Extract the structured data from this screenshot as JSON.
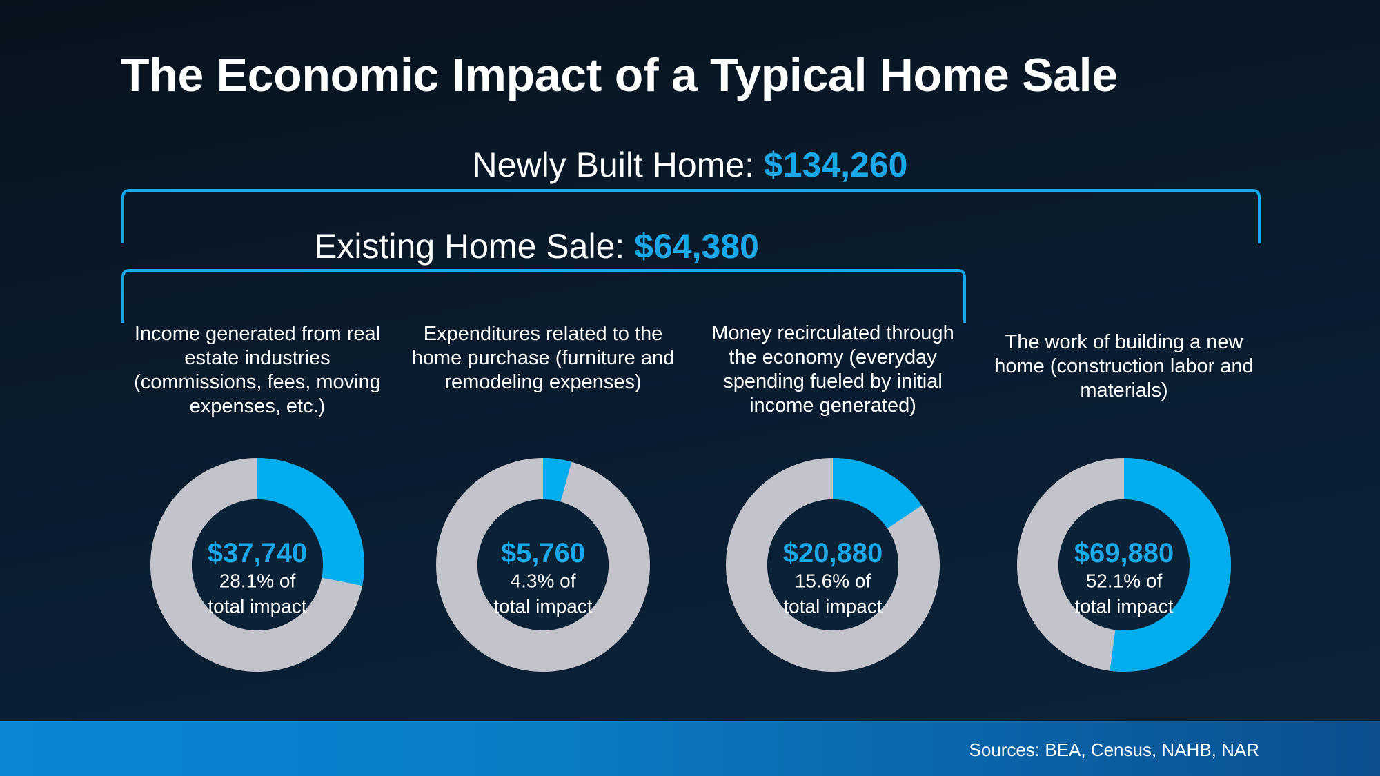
{
  "title": "The Economic Impact of a Typical Home Sale",
  "brackets": {
    "newly_built": {
      "label": "Newly Built Home: ",
      "value": "$134,260"
    },
    "existing": {
      "label": "Existing Home Sale: ",
      "value": "$64,380"
    }
  },
  "colors": {
    "accent": "#00aeef",
    "track": "#c3c4cb",
    "center": "#0a2136"
  },
  "chart_data": {
    "type": "pie",
    "donut": true,
    "total": 134260,
    "segments": [
      {
        "description": "Income generated from real estate industries (commissions, fees, moving expenses, etc.)",
        "amount_label": "$37,740",
        "amount": 37740,
        "percent": 28.1,
        "percent_label": "28.1% of",
        "suffix": "total impact"
      },
      {
        "description": "Expenditures related to the home purchase (furniture and remodeling expenses)",
        "amount_label": "$5,760",
        "amount": 5760,
        "percent": 4.3,
        "percent_label": "4.3% of",
        "suffix": "total impact"
      },
      {
        "description": "Money recirculated through the economy (everyday spending fueled by initial income generated)",
        "amount_label": "$20,880",
        "amount": 20880,
        "percent": 15.6,
        "percent_label": "15.6% of",
        "suffix": "total impact"
      },
      {
        "description": "The work of building a new home (construction labor and materials)",
        "amount_label": "$69,880",
        "amount": 69880,
        "percent": 52.1,
        "percent_label": "52.1% of",
        "suffix": "total impact"
      }
    ]
  },
  "footer": {
    "sources": "Sources: BEA, Census, NAHB, NAR"
  }
}
